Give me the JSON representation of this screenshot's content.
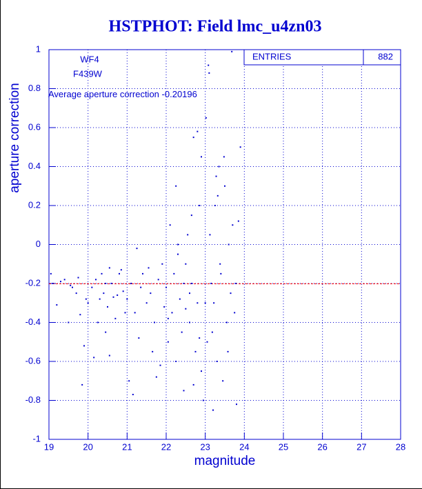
{
  "chart_data": {
    "type": "scatter",
    "title": "HSTPHOT: Field lmc_u4zn03",
    "x_label": "magnitude",
    "y_label": "aperture correction",
    "annotations": [
      "WF4",
      "F439W"
    ],
    "average": {
      "label": "Average aperture correction",
      "value": -0.20196,
      "color": "#ff0000"
    },
    "stats": {
      "label": "ENTRIES",
      "value": 882
    },
    "color": "#0000d0",
    "grid": true,
    "xlim": [
      19,
      28
    ],
    "xticks": [
      19,
      20,
      21,
      22,
      23,
      24,
      25,
      26,
      27,
      28
    ],
    "ylim": [
      -1,
      1
    ],
    "yticks": [
      -1,
      -0.8,
      -0.6,
      -0.4,
      -0.2,
      0,
      0.2,
      0.4,
      0.6,
      0.8,
      1
    ],
    "x": [
      19.05,
      19.1,
      19.2,
      19.3,
      19.4,
      19.5,
      19.6,
      19.7,
      19.8,
      19.9,
      19.95,
      19.85,
      19.75,
      19.55,
      20.0,
      20.1,
      20.15,
      20.2,
      20.3,
      20.35,
      20.4,
      20.45,
      20.5,
      20.55,
      20.6,
      20.65,
      20.7,
      20.8,
      20.9,
      20.95,
      20.25,
      20.45,
      20.55,
      20.75,
      20.85,
      21.0,
      21.05,
      21.1,
      21.2,
      21.25,
      21.3,
      21.4,
      21.5,
      21.6,
      21.65,
      21.7,
      21.8,
      21.85,
      21.9,
      21.95,
      21.15,
      21.35,
      21.55,
      21.75,
      22.0,
      22.05,
      22.1,
      22.15,
      22.2,
      22.25,
      22.3,
      22.35,
      22.4,
      22.45,
      22.5,
      22.55,
      22.6,
      22.65,
      22.7,
      22.75,
      22.8,
      22.85,
      22.9,
      22.95,
      22.05,
      22.25,
      22.45,
      22.65,
      22.85,
      22.3,
      22.5,
      22.7,
      22.9,
      22.6,
      22.8,
      23.0,
      23.02,
      23.05,
      23.1,
      23.15,
      23.2,
      23.25,
      23.3,
      23.35,
      23.4,
      23.45,
      23.5,
      23.55,
      23.6,
      23.65,
      23.7,
      23.75,
      23.8,
      23.85,
      23.9,
      23.08,
      23.18,
      23.28,
      23.38,
      23.48,
      23.58,
      23.68,
      23.78,
      23.12,
      23.22,
      23.32
    ],
    "values": [
      -0.15,
      -0.2,
      -0.31,
      -0.19,
      -0.18,
      -0.4,
      -0.22,
      -0.25,
      -0.36,
      -0.52,
      -0.28,
      -0.72,
      -0.17,
      -0.21,
      -0.3,
      -0.22,
      -0.58,
      -0.18,
      -0.28,
      -0.15,
      -0.25,
      -0.45,
      -0.32,
      -0.12,
      -0.2,
      -0.27,
      -0.38,
      -0.15,
      -0.24,
      -0.35,
      -0.4,
      -0.2,
      -0.57,
      -0.26,
      -0.13,
      -0.28,
      -0.7,
      -0.2,
      -0.35,
      -0.02,
      -0.48,
      -0.15,
      -0.3,
      -0.25,
      -0.55,
      -0.4,
      -0.18,
      -0.62,
      -0.1,
      -0.32,
      -0.77,
      -0.22,
      -0.12,
      -0.68,
      -0.22,
      -0.5,
      0.1,
      -0.35,
      -0.15,
      -0.6,
      0.0,
      -0.28,
      -0.45,
      -0.75,
      -0.1,
      0.05,
      -0.4,
      -0.2,
      0.55,
      -0.55,
      -0.3,
      0.2,
      -0.65,
      -0.8,
      -0.38,
      0.3,
      -0.2,
      0.15,
      -0.48,
      -0.05,
      -0.33,
      -0.72,
      0.45,
      -0.25,
      0.58,
      -0.3,
      0.65,
      -0.5,
      0.88,
      -0.2,
      -0.85,
      0.2,
      -0.6,
      0.4,
      -0.15,
      -0.7,
      0.3,
      -0.4,
      0.0,
      -0.25,
      0.1,
      -0.35,
      -0.82,
      0.12,
      0.5,
      0.92,
      -0.45,
      0.35,
      -0.1,
      0.45,
      -0.55,
      0.99,
      -0.2,
      0.05,
      -0.3,
      0.25
    ]
  }
}
